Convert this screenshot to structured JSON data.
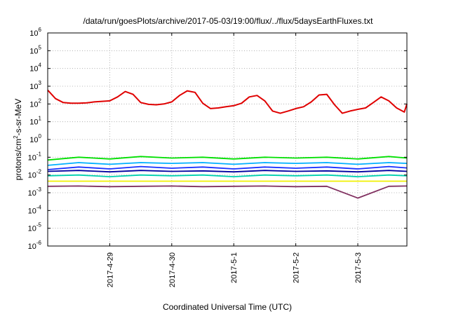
{
  "chart_data": {
    "type": "line",
    "title": "/data/run/goesPlots/archive/2017-05-03/19:00/flux/../flux/5daysEarthFluxes.txt",
    "xlabel": "Coordinated Universal Time (UTC)",
    "ylabel": "protons/cm2-s-sr-MeV",
    "ylabel_parts": {
      "before": "protons/cm",
      "superscript": "2",
      "after": "-s-sr-MeV"
    },
    "yscale": "log",
    "ylim": [
      1e-06,
      1000000.0
    ],
    "y_tick_labels": [
      {
        "value": 1e-06,
        "base": "10",
        "exp": "-6"
      },
      {
        "value": 1e-05,
        "base": "10",
        "exp": "-5"
      },
      {
        "value": 0.0001,
        "base": "10",
        "exp": "-4"
      },
      {
        "value": 0.001,
        "base": "10",
        "exp": "-3"
      },
      {
        "value": 0.01,
        "base": "10",
        "exp": "-2"
      },
      {
        "value": 0.1,
        "base": "10",
        "exp": "-1"
      },
      {
        "value": 1.0,
        "base": "10",
        "exp": "0"
      },
      {
        "value": 10.0,
        "base": "10",
        "exp": "1"
      },
      {
        "value": 100.0,
        "base": "10",
        "exp": "2"
      },
      {
        "value": 1000.0,
        "base": "10",
        "exp": "3"
      },
      {
        "value": 10000.0,
        "base": "10",
        "exp": "4"
      },
      {
        "value": 100000.0,
        "base": "10",
        "exp": "5"
      },
      {
        "value": 1000000.0,
        "base": "10",
        "exp": "6"
      }
    ],
    "xlim": [
      "2017-04-28 00:00",
      "2017-05-03 19:00"
    ],
    "x_ticks": [
      "2017-4-29",
      "2017-4-30",
      "2017-5-1",
      "2017-5-2",
      "2017-5-3"
    ],
    "grid": true,
    "series": [
      {
        "color": "#e00000",
        "x": [
          "2017-04-28 00:00",
          "2017-04-28 03:00",
          "2017-04-28 06:00",
          "2017-04-28 09:00",
          "2017-04-28 12:00",
          "2017-04-28 15:00",
          "2017-04-28 18:00",
          "2017-04-28 21:00",
          "2017-04-29 00:00",
          "2017-04-29 03:00",
          "2017-04-29 06:00",
          "2017-04-29 09:00",
          "2017-04-29 12:00",
          "2017-04-29 15:00",
          "2017-04-29 18:00",
          "2017-04-29 21:00",
          "2017-04-30 00:00",
          "2017-04-30 03:00",
          "2017-04-30 06:00",
          "2017-04-30 09:00",
          "2017-04-30 12:00",
          "2017-04-30 15:00",
          "2017-04-30 18:00",
          "2017-04-30 21:00",
          "2017-05-01 00:00",
          "2017-05-01 03:00",
          "2017-05-01 06:00",
          "2017-05-01 09:00",
          "2017-05-01 12:00",
          "2017-05-01 15:00",
          "2017-05-01 18:00",
          "2017-05-01 21:00",
          "2017-05-02 00:00",
          "2017-05-02 03:00",
          "2017-05-02 06:00",
          "2017-05-02 09:00",
          "2017-05-02 12:00",
          "2017-05-02 15:00",
          "2017-05-02 18:00",
          "2017-05-02 21:00",
          "2017-05-03 00:00",
          "2017-05-03 03:00",
          "2017-05-03 06:00",
          "2017-05-03 09:00",
          "2017-05-03 12:00",
          "2017-05-03 15:00",
          "2017-05-03 18:00",
          "2017-05-03 19:00"
        ],
        "y": [
          600,
          200,
          120,
          110,
          110,
          115,
          130,
          140,
          150,
          250,
          500,
          350,
          120,
          95,
          90,
          100,
          130,
          300,
          550,
          450,
          110,
          55,
          60,
          70,
          80,
          110,
          250,
          300,
          150,
          40,
          30,
          40,
          55,
          70,
          130,
          320,
          350,
          90,
          30,
          40,
          50,
          60,
          120,
          250,
          150,
          60,
          35,
          100
        ]
      },
      {
        "color": "#00e000",
        "x": [
          "2017-04-28 00:00",
          "2017-04-28 12:00",
          "2017-04-29 00:00",
          "2017-04-29 12:00",
          "2017-04-30 00:00",
          "2017-04-30 12:00",
          "2017-05-01 00:00",
          "2017-05-01 12:00",
          "2017-05-02 00:00",
          "2017-05-02 12:00",
          "2017-05-03 00:00",
          "2017-05-03 12:00",
          "2017-05-03 19:00"
        ],
        "y": [
          0.07,
          0.1,
          0.08,
          0.11,
          0.09,
          0.1,
          0.08,
          0.1,
          0.09,
          0.1,
          0.08,
          0.11,
          0.09
        ]
      },
      {
        "color": "#00b0ff",
        "x": [
          "2017-04-28 00:00",
          "2017-04-28 12:00",
          "2017-04-29 00:00",
          "2017-04-29 12:00",
          "2017-04-30 00:00",
          "2017-04-30 12:00",
          "2017-05-01 00:00",
          "2017-05-01 12:00",
          "2017-05-02 00:00",
          "2017-05-02 12:00",
          "2017-05-03 00:00",
          "2017-05-03 12:00",
          "2017-05-03 19:00"
        ],
        "y": [
          0.035,
          0.05,
          0.04,
          0.05,
          0.045,
          0.05,
          0.04,
          0.05,
          0.045,
          0.05,
          0.04,
          0.05,
          0.045
        ]
      },
      {
        "color": "#1830ff",
        "x": [
          "2017-04-28 00:00",
          "2017-04-28 12:00",
          "2017-04-29 00:00",
          "2017-04-29 12:00",
          "2017-04-30 00:00",
          "2017-04-30 12:00",
          "2017-05-01 00:00",
          "2017-05-01 12:00",
          "2017-05-02 00:00",
          "2017-05-02 12:00",
          "2017-05-03 00:00",
          "2017-05-03 12:00",
          "2017-05-03 19:00"
        ],
        "y": [
          0.02,
          0.028,
          0.022,
          0.03,
          0.024,
          0.028,
          0.022,
          0.028,
          0.024,
          0.028,
          0.022,
          0.03,
          0.025
        ]
      },
      {
        "color": "#0000a0",
        "x": [
          "2017-04-28 00:00",
          "2017-04-28 12:00",
          "2017-04-29 00:00",
          "2017-04-29 12:00",
          "2017-04-30 00:00",
          "2017-04-30 12:00",
          "2017-05-01 00:00",
          "2017-05-01 12:00",
          "2017-05-02 00:00",
          "2017-05-02 12:00",
          "2017-05-03 00:00",
          "2017-05-03 12:00",
          "2017-05-03 19:00"
        ],
        "y": [
          0.016,
          0.018,
          0.015,
          0.018,
          0.016,
          0.017,
          0.015,
          0.018,
          0.016,
          0.017,
          0.015,
          0.018,
          0.016
        ]
      },
      {
        "color": "#00d0b0",
        "x": [
          "2017-04-28 00:00",
          "2017-04-28 12:00",
          "2017-04-29 00:00",
          "2017-04-29 12:00",
          "2017-04-30 00:00",
          "2017-04-30 12:00",
          "2017-05-01 00:00",
          "2017-05-01 12:00",
          "2017-05-02 00:00",
          "2017-05-02 12:00",
          "2017-05-03 00:00",
          "2017-05-03 12:00",
          "2017-05-03 19:00"
        ],
        "y": [
          0.009,
          0.01,
          0.008,
          0.01,
          0.009,
          0.01,
          0.008,
          0.01,
          0.009,
          0.01,
          0.008,
          0.01,
          0.009
        ]
      },
      {
        "color": "#f0f000",
        "x": [
          "2017-04-28 00:00",
          "2017-05-03 19:00"
        ],
        "y": [
          0.0045,
          0.0045
        ]
      },
      {
        "color": "#803060",
        "x": [
          "2017-04-28 00:00",
          "2017-04-28 12:00",
          "2017-04-29 00:00",
          "2017-04-29 12:00",
          "2017-04-30 00:00",
          "2017-04-30 12:00",
          "2017-05-01 00:00",
          "2017-05-01 12:00",
          "2017-05-02 00:00",
          "2017-05-02 12:00",
          "2017-05-03 00:00",
          "2017-05-03 12:00",
          "2017-05-03 19:00"
        ],
        "y": [
          0.0023,
          0.0024,
          0.0022,
          0.0023,
          0.0024,
          0.0022,
          0.0023,
          0.0024,
          0.0022,
          0.0023,
          0.0005,
          0.0023,
          0.0024
        ]
      }
    ]
  }
}
